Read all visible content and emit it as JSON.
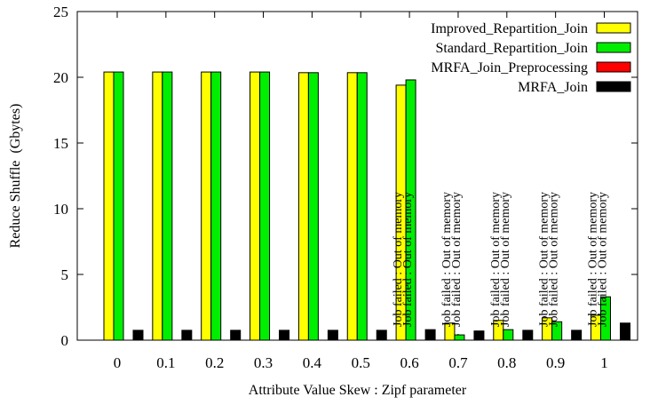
{
  "chart_data": {
    "type": "bar",
    "title": "",
    "xlabel": "Attribute Value Skew : Zipf parameter",
    "ylabel": "Reduce Shuffle  (Gbytes)",
    "ylim": [
      0,
      25
    ],
    "yticks": [
      0,
      5,
      10,
      15,
      20,
      25
    ],
    "grid": false,
    "legend_position": "top-right",
    "categories": [
      "0",
      "0.1",
      "0.2",
      "0.3",
      "0.4",
      "0.5",
      "0.6",
      "0.7",
      "0.8",
      "0.9",
      "1"
    ],
    "series": [
      {
        "name": "Improved_Repartition_Join",
        "color": "#ffff00",
        "values": [
          20.4,
          20.4,
          20.4,
          20.4,
          20.35,
          20.35,
          19.4,
          1.3,
          1.5,
          1.7,
          1.9
        ]
      },
      {
        "name": "Standard_Repartition_Join",
        "color": "#00ee00",
        "values": [
          20.4,
          20.4,
          20.4,
          20.4,
          20.35,
          20.35,
          19.8,
          0.4,
          0.8,
          1.4,
          3.3
        ]
      },
      {
        "name": "MRFA_Join_Preprocessing",
        "color": "#ff0000",
        "values": [
          0,
          0,
          0,
          0,
          0,
          0,
          0,
          0,
          0,
          0,
          0
        ]
      },
      {
        "name": "MRFA_Join",
        "color": "#000000",
        "values": [
          0.75,
          0.75,
          0.75,
          0.75,
          0.75,
          0.75,
          0.8,
          0.7,
          0.75,
          0.75,
          1.3
        ]
      }
    ],
    "annotations": [
      {
        "category": "0.6",
        "lines": [
          "Job failed : Out of memory",
          "Job failed : Out of memory"
        ]
      },
      {
        "category": "0.7",
        "lines": [
          "Job failed : Out of memory",
          "Job failed : Out of memory"
        ]
      },
      {
        "category": "0.8",
        "lines": [
          "Job failed : Out of memory",
          "Job failed : Out of memory"
        ]
      },
      {
        "category": "0.9",
        "lines": [
          "Job failed : Out of memory",
          "Job failed : Out of memory"
        ]
      },
      {
        "category": "1",
        "lines": [
          "Job failed : Out of memory",
          "Job failed : Out of memory"
        ]
      }
    ]
  }
}
